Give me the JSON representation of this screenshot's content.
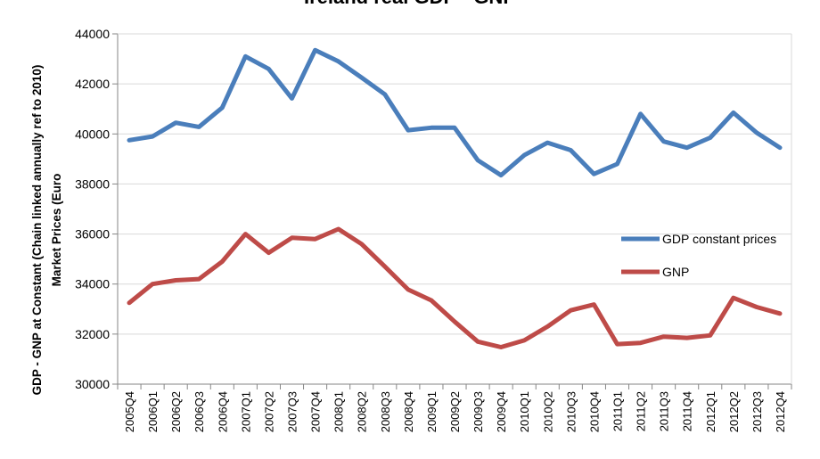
{
  "chart_data": {
    "type": "line",
    "title": "Ireland real GDP - GNP",
    "xlabel": "",
    "ylabel_line1": "GDP - GNP  at Constant (Chain linked annually ref to 2010)",
    "ylabel_line2": "Market Prices (Euro",
    "ylim": [
      30000,
      44000
    ],
    "yticks": [
      30000,
      32000,
      34000,
      36000,
      38000,
      40000,
      42000,
      44000
    ],
    "grid": true,
    "legend_position": "right",
    "categories": [
      "2005Q4",
      "2006Q1",
      "2006Q2",
      "2006Q3",
      "2006Q4",
      "2007Q1",
      "2007Q2",
      "2007Q3",
      "2007Q4",
      "2008Q1",
      "2008Q2",
      "2008Q3",
      "2008Q4",
      "2009Q1",
      "2009Q2",
      "2009Q3",
      "2009Q4",
      "2010Q1",
      "2010Q2",
      "2010Q3",
      "2010Q4",
      "2011Q1",
      "2011Q2",
      "2011Q3",
      "2011Q4",
      "2012Q1",
      "2012Q2",
      "2012Q3",
      "2012Q4"
    ],
    "series": [
      {
        "name": "GDP constant prices",
        "color": "#4a7ebb",
        "values": [
          39750,
          39900,
          40450,
          40280,
          41050,
          43100,
          42600,
          41420,
          43350,
          42900,
          42250,
          41580,
          40150,
          40250,
          40250,
          38950,
          38350,
          39150,
          39650,
          39350,
          38400,
          38800,
          40800,
          39700,
          39450,
          39850,
          40850,
          40050,
          39450
        ]
      },
      {
        "name": "GNP",
        "color": "#be4b48",
        "values": [
          33250,
          34000,
          34150,
          34200,
          34900,
          36000,
          35250,
          35850,
          35800,
          36200,
          35600,
          34700,
          33780,
          33350,
          32500,
          31700,
          31480,
          31750,
          32300,
          32950,
          33180,
          31600,
          31650,
          31900,
          31850,
          31950,
          33450,
          33080,
          32820
        ]
      }
    ]
  },
  "colors": {
    "gridline": "#d9d9d9",
    "axis": "#868686",
    "text": "#000000"
  }
}
